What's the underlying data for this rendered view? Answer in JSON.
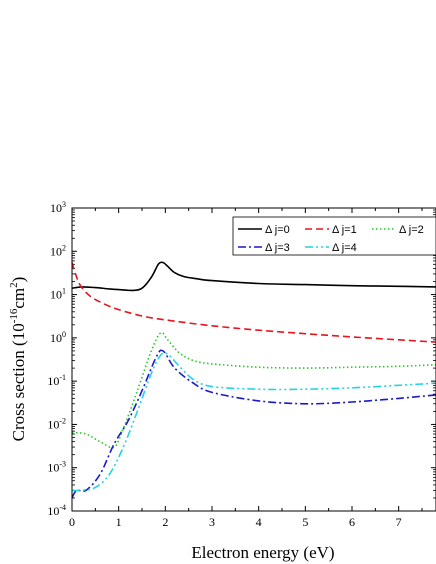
{
  "chart_data": {
    "type": "line",
    "xlabel": "Electron energy (eV)",
    "ylabel": {
      "prefix": "Cross section (10",
      "exponent": "-16",
      "middle": "cm",
      "unit_exponent": "2",
      "suffix": ")"
    },
    "xlim": [
      0,
      7.8
    ],
    "ylim": [
      0.0001,
      1000
    ],
    "y_scale": "log",
    "x_ticks": [
      "0",
      "1",
      "2",
      "3",
      "4",
      "5",
      "6",
      "7"
    ],
    "y_ticks": [
      {
        "base": "10",
        "exp": "-4"
      },
      {
        "base": "10",
        "exp": "-3"
      },
      {
        "base": "10",
        "exp": "-2"
      },
      {
        "base": "10",
        "exp": "-1"
      },
      {
        "base": "10",
        "exp": "0"
      },
      {
        "base": "10",
        "exp": "1"
      },
      {
        "base": "10",
        "exp": "2"
      },
      {
        "base": "10",
        "exp": "3"
      }
    ],
    "legend_position": "top-right",
    "series": [
      {
        "name": "Δ j=0",
        "color": "#000000",
        "dash": "solid",
        "x": [
          0,
          0.2,
          0.5,
          0.8,
          1.0,
          1.3,
          1.5,
          1.7,
          1.85,
          1.95,
          2.05,
          2.2,
          2.4,
          2.7,
          3,
          4,
          5,
          6,
          7,
          7.8
        ],
        "y": [
          14,
          15,
          14.5,
          13.5,
          13,
          12.5,
          14,
          25,
          50,
          55,
          45,
          32,
          26,
          23,
          21,
          18,
          17,
          16,
          15.5,
          15
        ]
      },
      {
        "name": "Δ j=1",
        "color": "#e8141e",
        "dash": "dashed",
        "x": [
          0,
          0.1,
          0.2,
          0.4,
          0.7,
          1.0,
          1.5,
          2,
          3,
          4,
          5,
          6,
          7,
          7.8
        ],
        "y": [
          55,
          25,
          15,
          9,
          6,
          4.5,
          3.2,
          2.6,
          1.9,
          1.5,
          1.25,
          1.05,
          0.9,
          0.8
        ]
      },
      {
        "name": "Δ j=2",
        "color": "#22cc22",
        "dash": "dotted",
        "x": [
          0,
          0.3,
          0.6,
          0.9,
          1.1,
          1.4,
          1.7,
          1.9,
          2.05,
          2.3,
          2.6,
          3,
          4,
          5,
          6,
          7,
          7.8
        ],
        "y": [
          0.0065,
          0.006,
          0.004,
          0.003,
          0.008,
          0.06,
          0.5,
          1.3,
          0.9,
          0.45,
          0.3,
          0.25,
          0.21,
          0.2,
          0.21,
          0.22,
          0.24
        ]
      },
      {
        "name": "Δ j=3",
        "color": "#1a1acc",
        "dash": "dashdot",
        "x": [
          0,
          0.1,
          0.3,
          0.6,
          0.9,
          1.2,
          1.5,
          1.8,
          1.95,
          2.2,
          2.6,
          3,
          4,
          5,
          6,
          7,
          7.8
        ],
        "y": [
          0.0002,
          0.0003,
          0.0003,
          0.0007,
          0.0035,
          0.012,
          0.06,
          0.35,
          0.5,
          0.2,
          0.09,
          0.055,
          0.035,
          0.03,
          0.033,
          0.04,
          0.048
        ]
      },
      {
        "name": "Δ j=4",
        "color": "#22d4e0",
        "dash": "dashdotdot",
        "x": [
          0,
          0.2,
          0.5,
          0.8,
          1.1,
          1.4,
          1.7,
          1.9,
          2.05,
          2.3,
          2.6,
          3,
          4,
          5,
          6,
          7,
          7.8
        ],
        "y": [
          0.0003,
          0.0003,
          0.00035,
          0.0007,
          0.003,
          0.02,
          0.15,
          0.4,
          0.42,
          0.22,
          0.11,
          0.075,
          0.065,
          0.065,
          0.07,
          0.08,
          0.09
        ]
      }
    ]
  }
}
